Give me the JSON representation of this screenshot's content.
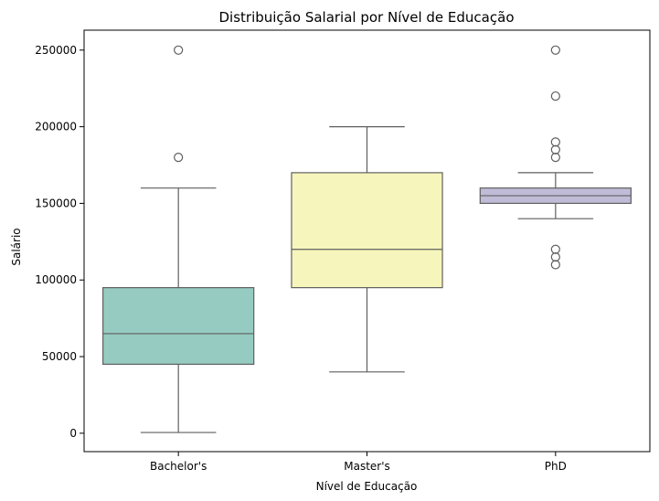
{
  "chart_data": {
    "type": "box",
    "title": "Distribuição Salarial por Nível de Educação",
    "xlabel": "Nível de Educação",
    "ylabel": "Salário",
    "ylim": [
      -12000,
      263000
    ],
    "yticks": [
      0,
      50000,
      100000,
      150000,
      200000,
      250000
    ],
    "ytick_labels": [
      "0",
      "50000",
      "100000",
      "150000",
      "200000",
      "250000"
    ],
    "grid": false,
    "categories": [
      "Bachelor's",
      "Master's",
      "PhD"
    ],
    "boxes": [
      {
        "category": "Bachelor's",
        "color": "#96cbc2",
        "whisker_low": 500,
        "q1": 45000,
        "median": 65000,
        "q3": 95000,
        "whisker_high": 160000,
        "outliers": [
          180000,
          250000
        ]
      },
      {
        "category": "Master's",
        "color": "#f6f6bc",
        "whisker_low": 40000,
        "q1": 95000,
        "median": 120000,
        "q3": 170000,
        "whisker_high": 200000,
        "outliers": []
      },
      {
        "category": "PhD",
        "color": "#c0bcd7",
        "whisker_low": 140000,
        "q1": 150000,
        "median": 155000,
        "q3": 160000,
        "whisker_high": 170000,
        "outliers": [
          110000,
          115000,
          120000,
          180000,
          185000,
          190000,
          220000,
          250000
        ]
      }
    ]
  }
}
